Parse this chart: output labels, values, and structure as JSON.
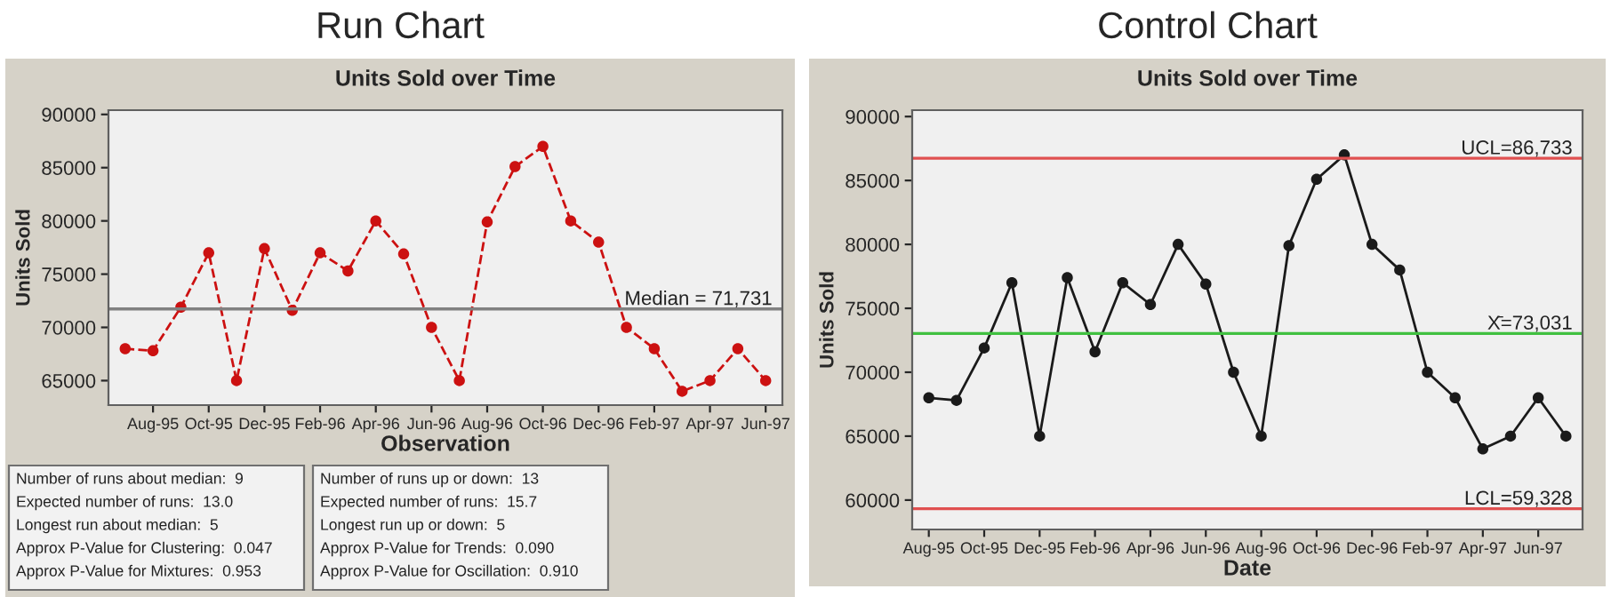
{
  "chart_data": [
    {
      "type": "line",
      "title": "Run Chart",
      "subtitle": "Units Sold over Time",
      "xlabel": "Observation",
      "ylabel": "Units Sold",
      "categories": [
        null,
        "Aug-95",
        null,
        "Oct-95",
        null,
        "Dec-95",
        null,
        "Feb-96",
        null,
        "Apr-96",
        null,
        "Jun-96",
        null,
        "Aug-96",
        null,
        "Oct-96",
        null,
        "Dec-96",
        null,
        "Feb-97",
        null,
        "Apr-97",
        null,
        "Jun-97"
      ],
      "series": [
        {
          "color": "#cc1111",
          "marker": "circle",
          "line_style": "dashed",
          "values": [
            68000,
            67800,
            71900,
            77000,
            65000,
            77400,
            71600,
            77000,
            75300,
            80000,
            76900,
            70000,
            65000,
            79900,
            85100,
            87000,
            80000,
            78000,
            70000,
            68000,
            64000,
            65000,
            68000,
            65000
          ]
        }
      ],
      "ylim": [
        62700,
        90400
      ],
      "yticks": [
        65000,
        70000,
        75000,
        80000,
        85000,
        90000
      ],
      "grid": false,
      "ref_lines": [
        {
          "axis": "y",
          "value": 71731,
          "label": "Median = 71,731",
          "color": "#808080"
        }
      ],
      "annotations": [
        "Number of runs about median:  9",
        "Expected number of runs:  13.0",
        "Longest run about median:  5",
        "Approx P-Value for Clustering:  0.047",
        "Approx P-Value for Mixtures:  0.953",
        "Number of runs up or down:  13",
        "Expected number of runs:  15.7",
        "Longest run up or down:  5",
        "Approx P-Value for Trends:  0.090",
        "Approx P-Value for Oscillation:  0.910"
      ]
    },
    {
      "type": "line",
      "title": "Control Chart",
      "subtitle": "Units Sold over Time",
      "xlabel": "Date",
      "ylabel": "Units Sold",
      "categories": [
        "Aug-95",
        null,
        "Oct-95",
        null,
        "Dec-95",
        null,
        "Feb-96",
        null,
        "Apr-96",
        null,
        "Jun-96",
        null,
        "Aug-96",
        null,
        "Oct-96",
        null,
        "Dec-96",
        null,
        "Feb-97",
        null,
        "Apr-97",
        null,
        "Jun-97",
        null
      ],
      "series": [
        {
          "color": "#1a1a1a",
          "marker": "circle",
          "line_style": "solid",
          "values": [
            68000,
            67800,
            71900,
            77000,
            65000,
            77400,
            71600,
            77000,
            75300,
            80000,
            76900,
            70000,
            65000,
            79900,
            85100,
            87000,
            80000,
            78000,
            70000,
            68000,
            64000,
            65000,
            68000,
            65000
          ]
        }
      ],
      "ylim": [
        57700,
        90500
      ],
      "yticks": [
        60000,
        65000,
        70000,
        75000,
        80000,
        85000,
        90000
      ],
      "grid": false,
      "ref_lines": [
        {
          "axis": "y",
          "value": 86733,
          "label": "UCL=86,733",
          "color": "#e05050"
        },
        {
          "axis": "y",
          "value": 73031,
          "label": "X̄=73,031",
          "color": "#40c040"
        },
        {
          "axis": "y",
          "value": 59328,
          "label": "LCL=59,328",
          "color": "#e05050"
        }
      ]
    }
  ]
}
